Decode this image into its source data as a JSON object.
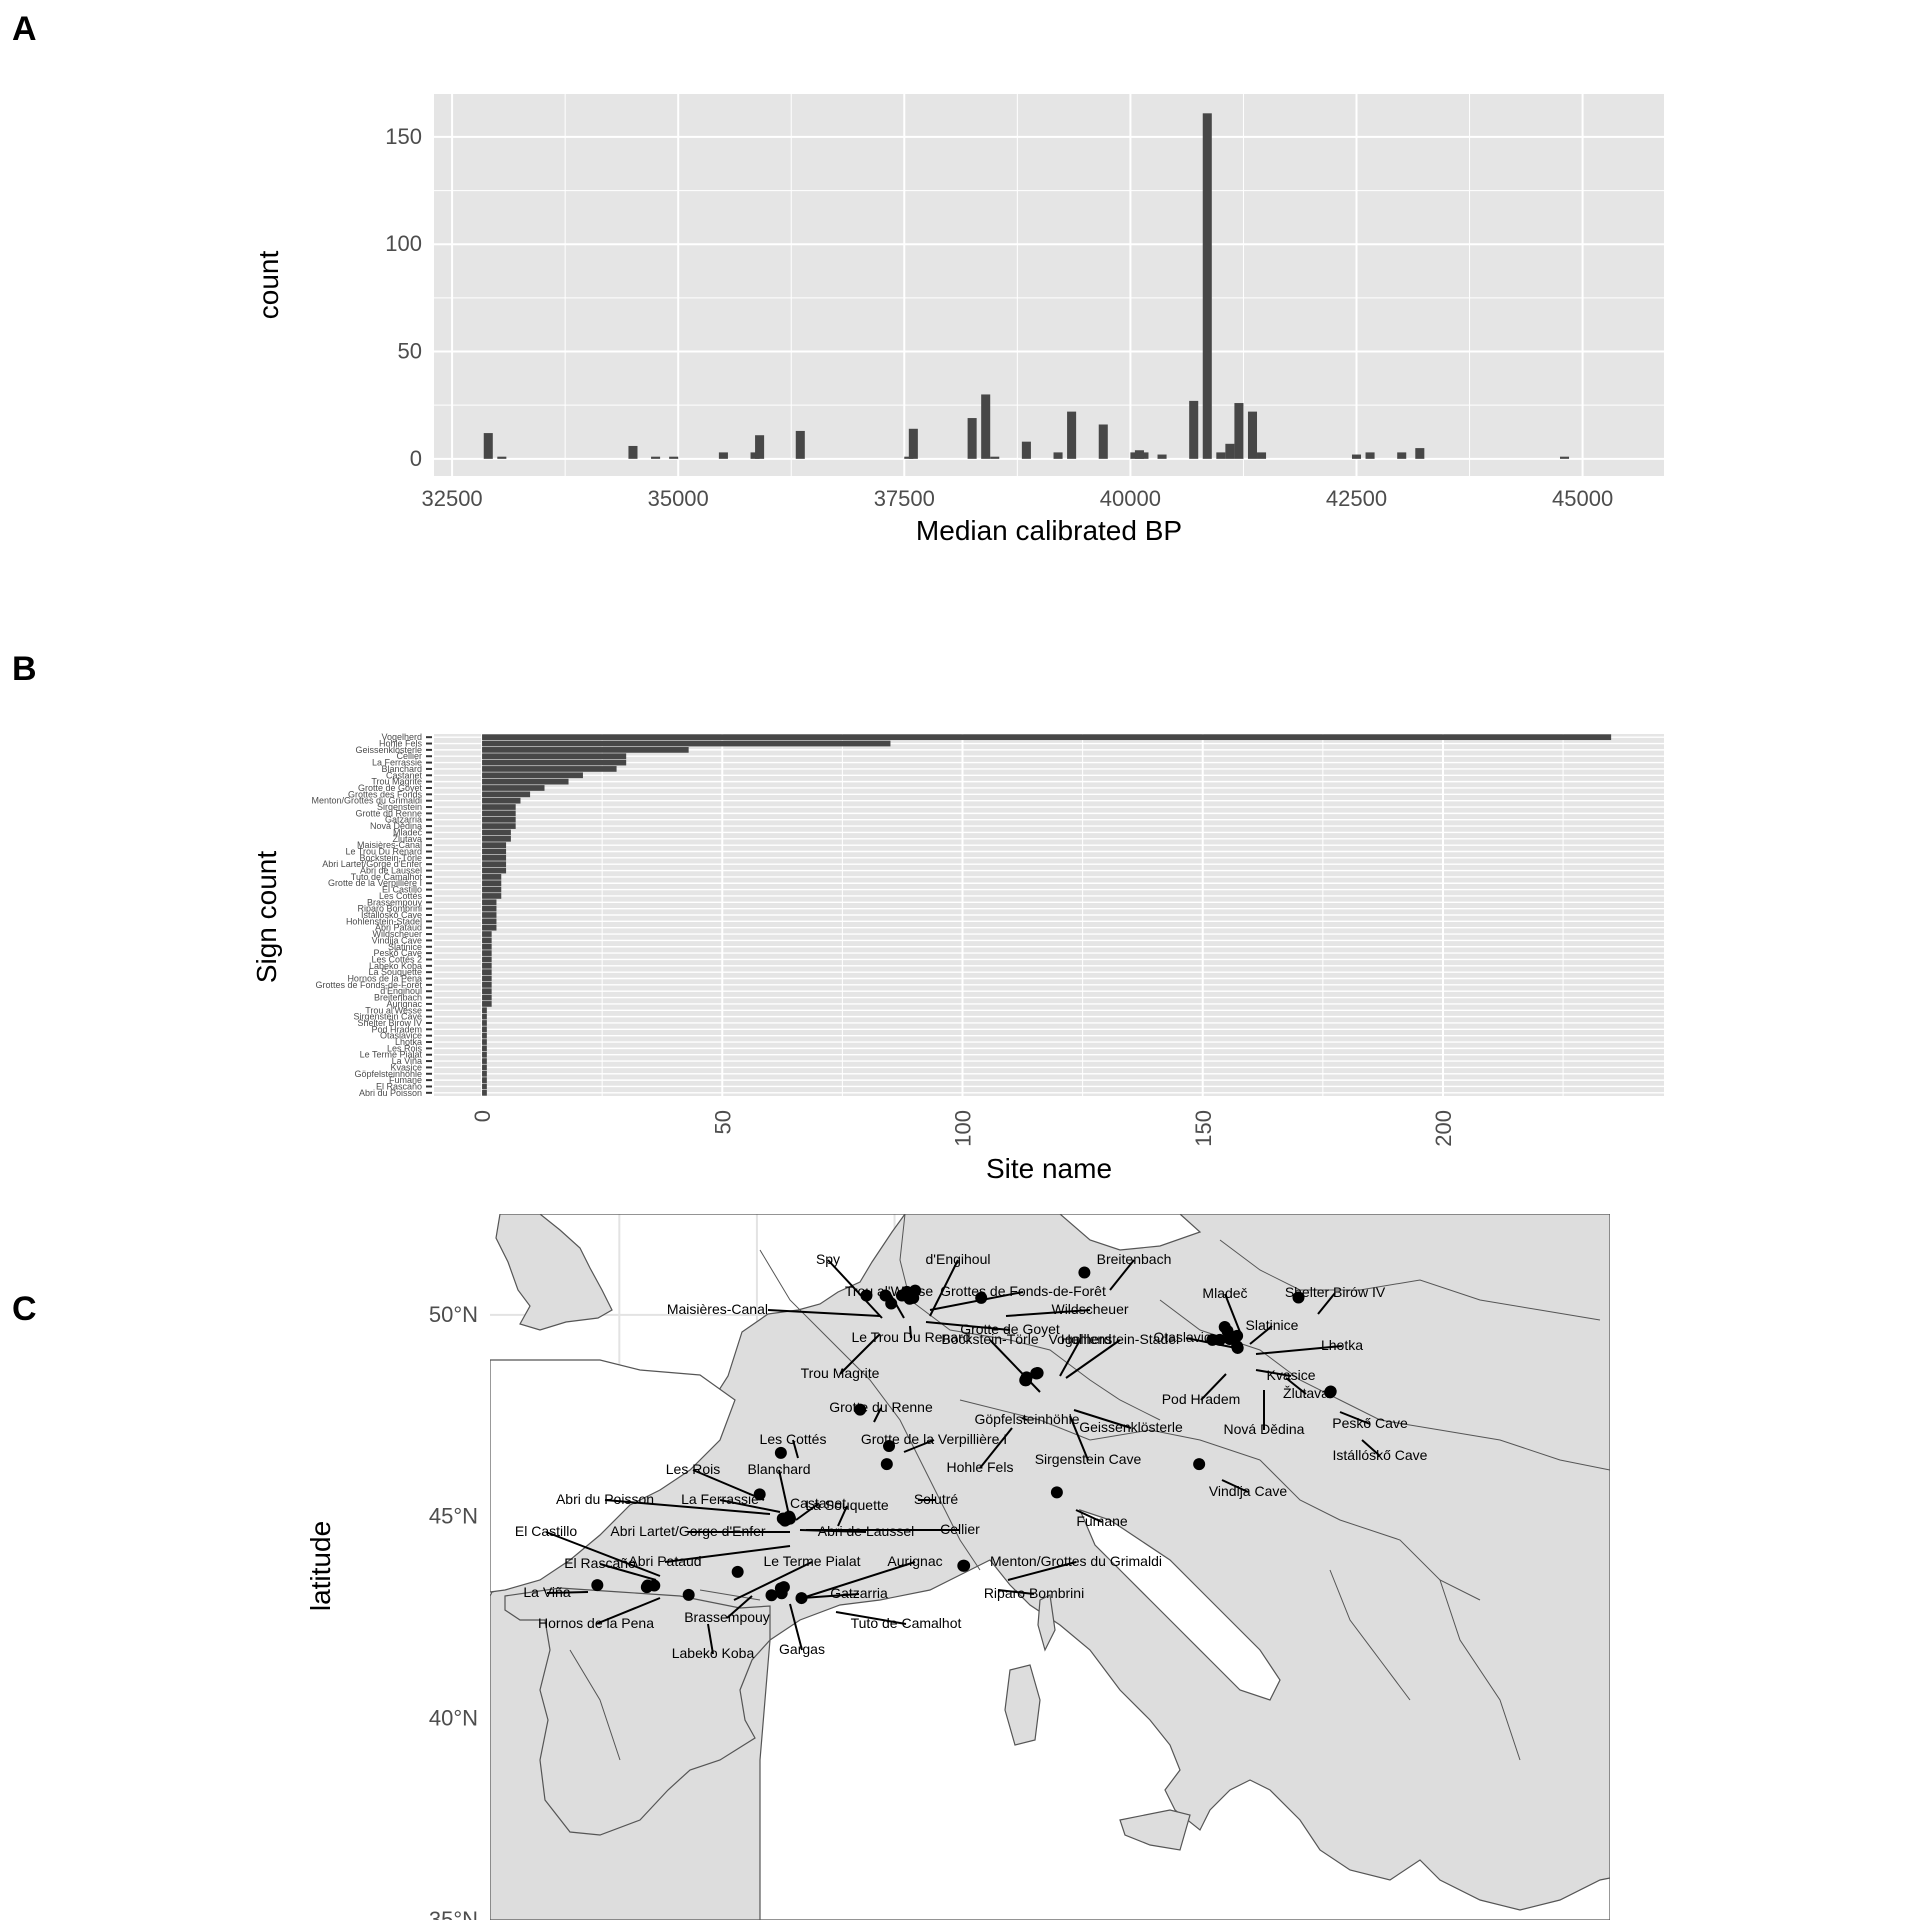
{
  "panels": {
    "a": "A",
    "b": "B",
    "c": "C"
  },
  "colors": {
    "panel_bg": "#e5e5e5",
    "grid": "#ffffff",
    "bar": "#474747",
    "land": "#dddddd",
    "border": "#555555",
    "point": "#000000"
  },
  "chart_data": [
    {
      "type": "bar",
      "title": "",
      "xlabel": "Median calibrated BP",
      "ylabel": "count",
      "xlim": [
        32300,
        45900
      ],
      "ylim": [
        -8,
        170
      ],
      "x_ticks": [
        32500,
        35000,
        37500,
        40000,
        42500,
        45000
      ],
      "y_ticks": [
        0,
        50,
        100,
        150
      ],
      "x_tick_labels": [
        "32500",
        "35000",
        "37500",
        "40000",
        "42500",
        "45000"
      ],
      "y_tick_labels": [
        "0",
        "50",
        "100",
        "150"
      ],
      "bins": [
        {
          "x": 32900,
          "count": 12
        },
        {
          "x": 33050,
          "count": 1
        },
        {
          "x": 34500,
          "count": 6
        },
        {
          "x": 34750,
          "count": 1
        },
        {
          "x": 34950,
          "count": 1
        },
        {
          "x": 35500,
          "count": 3
        },
        {
          "x": 35850,
          "count": 3
        },
        {
          "x": 35900,
          "count": 11
        },
        {
          "x": 36350,
          "count": 13
        },
        {
          "x": 37550,
          "count": 1
        },
        {
          "x": 37600,
          "count": 14
        },
        {
          "x": 38250,
          "count": 19
        },
        {
          "x": 38400,
          "count": 30
        },
        {
          "x": 38500,
          "count": 1
        },
        {
          "x": 38850,
          "count": 8
        },
        {
          "x": 39200,
          "count": 3
        },
        {
          "x": 39350,
          "count": 22
        },
        {
          "x": 39700,
          "count": 16
        },
        {
          "x": 40050,
          "count": 3
        },
        {
          "x": 40100,
          "count": 4
        },
        {
          "x": 40150,
          "count": 3
        },
        {
          "x": 40350,
          "count": 2
        },
        {
          "x": 40700,
          "count": 27
        },
        {
          "x": 40850,
          "count": 161
        },
        {
          "x": 41000,
          "count": 3
        },
        {
          "x": 41100,
          "count": 7
        },
        {
          "x": 41200,
          "count": 26
        },
        {
          "x": 41350,
          "count": 22
        },
        {
          "x": 41450,
          "count": 3
        },
        {
          "x": 42500,
          "count": 2
        },
        {
          "x": 42650,
          "count": 3
        },
        {
          "x": 43000,
          "count": 3
        },
        {
          "x": 43200,
          "count": 5
        },
        {
          "x": 44800,
          "count": 1
        }
      ]
    },
    {
      "type": "bar",
      "orientation": "horizontal",
      "title": "",
      "xlabel": "Site name",
      "ylabel": "Sign count",
      "xlim": [
        -10,
        246
      ],
      "x_ticks": [
        0,
        50,
        100,
        150,
        200
      ],
      "x_tick_labels": [
        "0",
        "50",
        "100",
        "150",
        "200"
      ],
      "categories": [
        "Vogelherd",
        "Hohle Fels",
        "Geissenklösterle",
        "Cellier",
        "La Ferrassie",
        "Blanchard",
        "Castanet",
        "Trou Magrite",
        "Grotte de Goyet",
        "Grottes des Fonds",
        "Menton/Grottes du Grimaldi",
        "Sirgenstein",
        "Grotte du Renne",
        "Gatzarria",
        "Nová Dědina",
        "Mladeč",
        "Žlutava",
        "Maisières-Canal",
        "Le Trou Du Renard",
        "Bockstein-Törle",
        "Abri Lartet/Gorge d'Enfer",
        "Abri de Laussel",
        "Tuto de Camalhot",
        "Grotte de la Verpillière I",
        "El Castillo",
        "Les Cottés",
        "Brassempouy",
        "Riparo Bombrini",
        "Istállóskő Cave",
        "Hohlenstein-Stadel",
        "Abri Pataud",
        "Wildscheuer",
        "Vindija Cave",
        "Slatinice",
        "Peskő Cave",
        "Les Cottés 2",
        "Labeko Koba",
        "La Souquette",
        "Hornos de la Pena",
        "Grottes de Fonds-de-Forêt",
        "d'Engihoul",
        "Breitenbach",
        "Aurignac",
        "Trou al'Wesse",
        "Sirgenstein Cave",
        "Shelter Birów IV",
        "Pod Hradem",
        "Otaslavice",
        "Lhotka",
        "Les Rois",
        "Le Terme Pialat",
        "La Viña",
        "Kvasice",
        "Göpfelsteinhöhle",
        "Fumane",
        "El Rascaño",
        "Abri du Poisson"
      ],
      "values": [
        235,
        85,
        43,
        30,
        30,
        28,
        21,
        18,
        13,
        10,
        8,
        7,
        7,
        7,
        7,
        6,
        6,
        5,
        5,
        5,
        5,
        5,
        4,
        4,
        4,
        4,
        3,
        3,
        3,
        3,
        3,
        2,
        2,
        2,
        2,
        2,
        2,
        2,
        2,
        2,
        2,
        2,
        2,
        1,
        1,
        1,
        1,
        1,
        1,
        1,
        1,
        1,
        1,
        1,
        1,
        1,
        1
      ]
    },
    {
      "type": "scatter",
      "subtype": "map",
      "title": "",
      "ylabel": "latitude",
      "xlim": [
        -9.7,
        31
      ],
      "ylim": [
        35,
        52.5
      ],
      "y_ticks": [
        35,
        40,
        45,
        50
      ],
      "y_tick_labels": [
        "35°N",
        "40°N",
        "45°N",
        "50°N"
      ],
      "x_grid": [
        -5,
        0,
        5,
        10,
        15,
        20,
        25,
        30
      ],
      "sites": [
        {
          "name": "Spy",
          "lon": 4.67,
          "lat": 50.48
        },
        {
          "name": "d'Engihoul",
          "lon": 5.45,
          "lat": 50.57
        },
        {
          "name": "Trou al'Wesse",
          "lon": 5.27,
          "lat": 50.48
        },
        {
          "name": "Grottes de Fonds-de-Forêt",
          "lon": 5.75,
          "lat": 50.6
        },
        {
          "name": "Maisières-Canal",
          "lon": 3.98,
          "lat": 50.48
        },
        {
          "name": "Le Trou Du Renard",
          "lon": 5.55,
          "lat": 50.4
        },
        {
          "name": "Trou Magrite",
          "lon": 4.88,
          "lat": 50.28
        },
        {
          "name": "Grotte de Goyet",
          "lon": 5.68,
          "lat": 50.42
        },
        {
          "name": "Wildscheuer",
          "lon": 8.15,
          "lat": 50.42
        },
        {
          "name": "Breitenbach",
          "lon": 11.9,
          "lat": 51.05
        },
        {
          "name": "Mladeč",
          "lon": 17.0,
          "lat": 49.7
        },
        {
          "name": "Shelter Birów IV",
          "lon": 19.68,
          "lat": 50.43
        },
        {
          "name": "Slatinice",
          "lon": 17.1,
          "lat": 49.6
        },
        {
          "name": "Otaslavice",
          "lon": 16.55,
          "lat": 49.38
        },
        {
          "name": "Lhotka",
          "lon": 17.45,
          "lat": 49.48
        },
        {
          "name": "Pod Hradem",
          "lon": 16.82,
          "lat": 49.38
        },
        {
          "name": "Kvasice",
          "lon": 17.45,
          "lat": 49.22
        },
        {
          "name": "Žlutava",
          "lon": 17.47,
          "lat": 49.18
        },
        {
          "name": "Nová Dědina",
          "lon": 17.18,
          "lat": 49.4
        },
        {
          "name": "Vogelherd",
          "lon": 10.2,
          "lat": 48.56
        },
        {
          "name": "Bockstein-Törle",
          "lon": 10.15,
          "lat": 48.55
        },
        {
          "name": "Hohlenstein-Stadel",
          "lon": 10.17,
          "lat": 48.55
        },
        {
          "name": "Göpfelsteinhöhle",
          "lon": 9.8,
          "lat": 48.45
        },
        {
          "name": "Geissenklösterle",
          "lon": 9.77,
          "lat": 48.4
        },
        {
          "name": "Hohle Fels",
          "lon": 9.75,
          "lat": 48.38
        },
        {
          "name": "Sirgenstein Cave",
          "lon": 9.78,
          "lat": 48.38
        },
        {
          "name": "Peskő Cave",
          "lon": 20.85,
          "lat": 48.1
        },
        {
          "name": "Istállóskő Cave",
          "lon": 20.83,
          "lat": 48.08
        },
        {
          "name": "Grotte du Renne",
          "lon": 3.75,
          "lat": 47.65
        },
        {
          "name": "Grotte de la Verpillière I",
          "lon": 4.8,
          "lat": 46.75
        },
        {
          "name": "Solutré",
          "lon": 4.72,
          "lat": 46.3
        },
        {
          "name": "Les Cottés",
          "lon": 0.87,
          "lat": 46.58
        },
        {
          "name": "Vindija Cave",
          "lon": 16.07,
          "lat": 46.3
        },
        {
          "name": "Fumane",
          "lon": 10.9,
          "lat": 45.6
        },
        {
          "name": "Les Rois",
          "lon": 0.1,
          "lat": 45.55
        },
        {
          "name": "Blanchard",
          "lon": 1.17,
          "lat": 45.0
        },
        {
          "name": "La Souquette",
          "lon": 1.18,
          "lat": 44.98
        },
        {
          "name": "Abri du Poisson",
          "lon": 1.0,
          "lat": 44.95
        },
        {
          "name": "La Ferrassie",
          "lon": 0.94,
          "lat": 44.95
        },
        {
          "name": "Castanet",
          "lon": 1.17,
          "lat": 44.97
        },
        {
          "name": "Abri Lartet/Gorge d'Enfer",
          "lon": 1.0,
          "lat": 44.93
        },
        {
          "name": "Abri de Laussel",
          "lon": 1.1,
          "lat": 44.93
        },
        {
          "name": "Cellier",
          "lon": 1.2,
          "lat": 44.95
        },
        {
          "name": "Abri Pataud",
          "lon": 1.02,
          "lat": 44.9
        },
        {
          "name": "El Castillo",
          "lon": -3.97,
          "lat": 43.29
        },
        {
          "name": "El Rascaño",
          "lon": -3.73,
          "lat": 43.29
        },
        {
          "name": "La Viña",
          "lon": -5.8,
          "lat": 43.3
        },
        {
          "name": "Hornos de la Pena",
          "lon": -4.0,
          "lat": 43.25
        },
        {
          "name": "Labeko Koba",
          "lon": -2.48,
          "lat": 43.06
        },
        {
          "name": "Brassempouy",
          "lon": -0.7,
          "lat": 43.63
        },
        {
          "name": "Le Terme Pialat",
          "lon": 0.98,
          "lat": 43.25
        },
        {
          "name": "Aurignac",
          "lon": 0.87,
          "lat": 43.22
        },
        {
          "name": "Gatzarria",
          "lon": 0.9,
          "lat": 43.1
        },
        {
          "name": "Gargas",
          "lon": 0.53,
          "lat": 43.05
        },
        {
          "name": "Tuto de Camalhot",
          "lon": 1.62,
          "lat": 42.98
        },
        {
          "name": "Menton/Grottes du Grimaldi",
          "lon": 7.5,
          "lat": 43.78
        },
        {
          "name": "Riparo Bombrini",
          "lon": 7.53,
          "lat": 43.78
        }
      ],
      "labels": [
        {
          "text": "Spy"
        },
        {
          "text": "d'Engihoul"
        },
        {
          "text": "Trou al'Wesse"
        },
        {
          "text": "Grottes de Fonds-de-Forêt"
        },
        {
          "text": "Maisières-Canal"
        },
        {
          "text": "Wildscheuer"
        },
        {
          "text": "Le Trou Du Renard"
        },
        {
          "text": "Grotte de Goyet"
        },
        {
          "text": "Trou Magrite"
        },
        {
          "text": "Breitenbach"
        },
        {
          "text": "Mladeč"
        },
        {
          "text": "Shelter Birów IV"
        },
        {
          "text": "Slatinice"
        },
        {
          "text": "Otaslavice"
        },
        {
          "text": "Lhotka"
        },
        {
          "text": "Vogelherd"
        },
        {
          "text": "Bockstein-Törle"
        },
        {
          "text": "Hohlenstein-Stadel"
        },
        {
          "text": "Pod Hradem"
        },
        {
          "text": "Kvasice"
        },
        {
          "text": "Žlutava"
        },
        {
          "text": "Grotte du Renne"
        },
        {
          "text": "Göpfelsteinhöhle"
        },
        {
          "text": "Geissenklösterle"
        },
        {
          "text": "Nová Dědina"
        },
        {
          "text": "Peskő Cave"
        },
        {
          "text": "Les Cottés"
        },
        {
          "text": "Grotte de la Verpillière I"
        },
        {
          "text": "Hohle Fels"
        },
        {
          "text": "Sirgenstein Cave"
        },
        {
          "text": "Istállóskő Cave"
        },
        {
          "text": "Les Rois"
        },
        {
          "text": "Blanchard"
        },
        {
          "text": "La Souquette"
        },
        {
          "text": "Solutré"
        },
        {
          "text": "Abri du Poisson"
        },
        {
          "text": "La Ferrassie"
        },
        {
          "text": "Castanet"
        },
        {
          "text": "Vindija Cave"
        },
        {
          "text": "Fumane"
        },
        {
          "text": "El Castillo"
        },
        {
          "text": "Abri Lartet/Gorge d'Enfer"
        },
        {
          "text": "Abri de Laussel"
        },
        {
          "text": "Cellier"
        },
        {
          "text": "El Rascaño"
        },
        {
          "text": "Abri Pataud"
        },
        {
          "text": "Le Terme Pialat"
        },
        {
          "text": "Aurignac"
        },
        {
          "text": "Menton/Grottes du Grimaldi"
        },
        {
          "text": "La Viña"
        },
        {
          "text": "Gatzarria"
        },
        {
          "text": "Riparo Bombrini"
        },
        {
          "text": "Hornos de la Pena"
        },
        {
          "text": "Brassempouy"
        },
        {
          "text": "Tuto de Camalhot"
        },
        {
          "text": "Labeko Koba"
        },
        {
          "text": "Gargas"
        }
      ]
    }
  ]
}
